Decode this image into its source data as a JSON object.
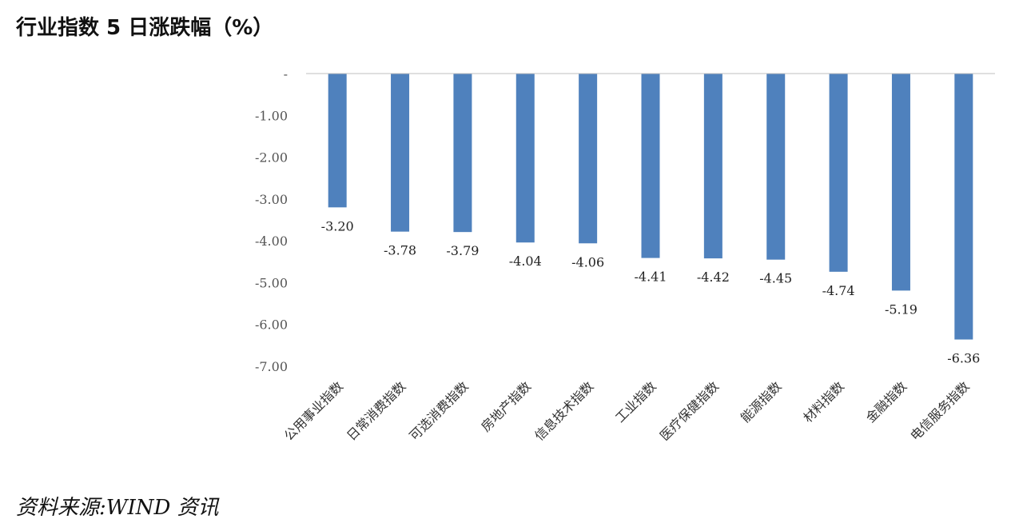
{
  "header": {
    "title": "行业指数 5 日涨跌幅（%）"
  },
  "footer": {
    "source": "资料来源:WIND 资讯"
  },
  "chart_data": {
    "type": "bar",
    "title": "行业指数 5 日涨跌幅（%）",
    "xlabel": "",
    "ylabel": "",
    "ylim": [
      -7,
      0
    ],
    "yticks": [
      0,
      -1,
      -2,
      -3,
      -4,
      -5,
      -6,
      -7
    ],
    "ytick_labels": [
      "-",
      "-1.00",
      "-2.00",
      "-3.00",
      "-4.00",
      "-5.00",
      "-6.00",
      "-7.00"
    ],
    "categories": [
      "公用事业指数",
      "日常消费指数",
      "可选消费指数",
      "房地产指数",
      "信息技术指数",
      "工业指数",
      "医疗保健指数",
      "能源指数",
      "材料指数",
      "金融指数",
      "电信服务指数"
    ],
    "values": [
      -3.2,
      -3.78,
      -3.79,
      -4.04,
      -4.06,
      -4.41,
      -4.42,
      -4.45,
      -4.74,
      -5.19,
      -6.36
    ],
    "value_labels": [
      "-3.20",
      "-3.78",
      "-3.79",
      "-4.04",
      "-4.06",
      "-4.41",
      "-4.42",
      "-4.45",
      "-4.74",
      "-5.19",
      "-6.36"
    ],
    "grid": false,
    "legend": "none",
    "bar_color": "#4F81BD",
    "axis_color": "#BFBFBF"
  }
}
